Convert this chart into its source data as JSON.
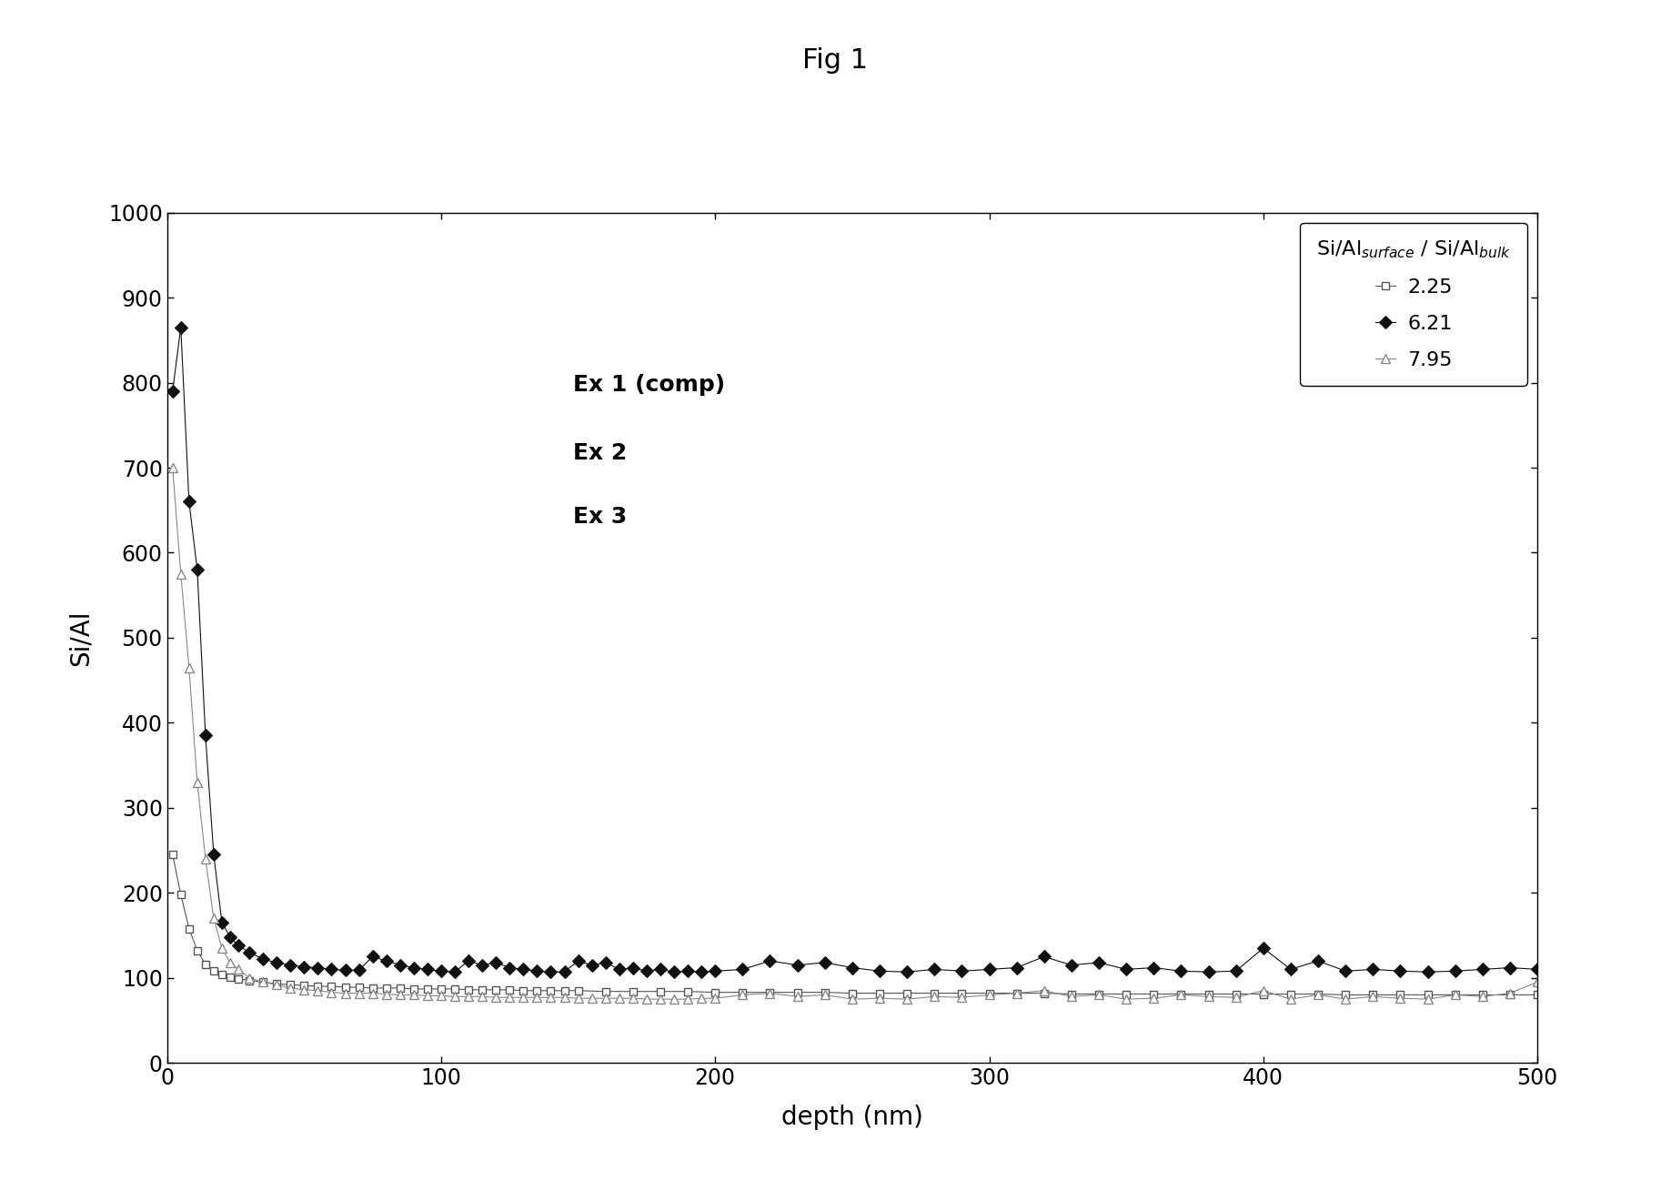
{
  "title": "Fig 1",
  "xlabel": "depth (nm)",
  "ylabel": "Si/Al",
  "xlim": [
    0,
    500
  ],
  "ylim": [
    0,
    1000
  ],
  "yticks": [
    0,
    100,
    200,
    300,
    400,
    500,
    600,
    700,
    800,
    900,
    1000
  ],
  "xticks": [
    0,
    100,
    200,
    300,
    400,
    500
  ],
  "legend_title": "Si/Al$_{surface}$ / Si/Al$_{bulk}$",
  "annotation_lines": [
    "Ex 1 (comp)",
    "Ex 2",
    "Ex 3"
  ],
  "series1": {
    "label": "2.25",
    "color": "#555555",
    "x": [
      2,
      5,
      8,
      11,
      14,
      17,
      20,
      23,
      26,
      30,
      35,
      40,
      45,
      50,
      55,
      60,
      65,
      70,
      75,
      80,
      85,
      90,
      95,
      100,
      105,
      110,
      115,
      120,
      125,
      130,
      135,
      140,
      145,
      150,
      160,
      170,
      180,
      190,
      200,
      210,
      220,
      230,
      240,
      250,
      260,
      270,
      280,
      290,
      300,
      310,
      320,
      330,
      340,
      350,
      360,
      370,
      380,
      390,
      400,
      410,
      420,
      430,
      440,
      450,
      460,
      470,
      480,
      490,
      500
    ],
    "y": [
      245,
      198,
      158,
      132,
      116,
      108,
      104,
      101,
      99,
      97,
      95,
      93,
      92,
      91,
      90,
      90,
      89,
      89,
      88,
      88,
      88,
      87,
      87,
      87,
      87,
      86,
      86,
      86,
      86,
      85,
      85,
      85,
      85,
      85,
      84,
      84,
      84,
      84,
      83,
      83,
      83,
      83,
      83,
      82,
      82,
      82,
      82,
      82,
      82,
      82,
      82,
      81,
      81,
      81,
      81,
      81,
      81,
      81,
      81,
      81,
      81,
      80,
      80,
      80,
      80,
      80,
      80,
      80,
      80
    ]
  },
  "series2": {
    "label": "6.21",
    "color": "#111111",
    "x": [
      2,
      5,
      8,
      11,
      14,
      17,
      20,
      23,
      26,
      30,
      35,
      40,
      45,
      50,
      55,
      60,
      65,
      70,
      75,
      80,
      85,
      90,
      95,
      100,
      105,
      110,
      115,
      120,
      125,
      130,
      135,
      140,
      145,
      150,
      155,
      160,
      165,
      170,
      175,
      180,
      185,
      190,
      195,
      200,
      210,
      220,
      230,
      240,
      250,
      260,
      270,
      280,
      290,
      300,
      310,
      320,
      330,
      340,
      350,
      360,
      370,
      380,
      390,
      400,
      410,
      420,
      430,
      440,
      450,
      460,
      470,
      480,
      490,
      500
    ],
    "y": [
      790,
      865,
      660,
      580,
      385,
      245,
      165,
      148,
      138,
      130,
      122,
      118,
      115,
      113,
      112,
      110,
      109,
      109,
      125,
      120,
      115,
      112,
      110,
      108,
      107,
      120,
      115,
      118,
      112,
      110,
      108,
      107,
      107,
      120,
      115,
      118,
      110,
      112,
      108,
      110,
      107,
      108,
      107,
      108,
      110,
      120,
      115,
      118,
      112,
      108,
      107,
      110,
      108,
      110,
      112,
      125,
      115,
      118,
      110,
      112,
      108,
      107,
      108,
      135,
      110,
      120,
      108,
      110,
      108,
      107,
      108,
      110,
      112,
      110
    ]
  },
  "series3": {
    "label": "7.95",
    "color": "#888888",
    "x": [
      2,
      5,
      8,
      11,
      14,
      17,
      20,
      23,
      26,
      30,
      35,
      40,
      45,
      50,
      55,
      60,
      65,
      70,
      75,
      80,
      85,
      90,
      95,
      100,
      105,
      110,
      115,
      120,
      125,
      130,
      135,
      140,
      145,
      150,
      155,
      160,
      165,
      170,
      175,
      180,
      185,
      190,
      195,
      200,
      210,
      220,
      230,
      240,
      250,
      260,
      270,
      280,
      290,
      300,
      310,
      320,
      330,
      340,
      350,
      360,
      370,
      380,
      390,
      400,
      410,
      420,
      430,
      440,
      450,
      460,
      470,
      480,
      490,
      500
    ],
    "y": [
      700,
      575,
      465,
      330,
      240,
      170,
      135,
      118,
      110,
      100,
      95,
      92,
      88,
      86,
      85,
      83,
      82,
      82,
      82,
      81,
      80,
      80,
      79,
      79,
      78,
      78,
      78,
      77,
      77,
      77,
      77,
      77,
      77,
      76,
      76,
      76,
      76,
      76,
      75,
      75,
      75,
      75,
      76,
      76,
      80,
      82,
      78,
      80,
      75,
      76,
      75,
      78,
      77,
      80,
      82,
      85,
      78,
      80,
      75,
      76,
      80,
      78,
      77,
      85,
      75,
      80,
      75,
      78,
      76,
      75,
      80,
      78,
      82,
      95
    ]
  }
}
